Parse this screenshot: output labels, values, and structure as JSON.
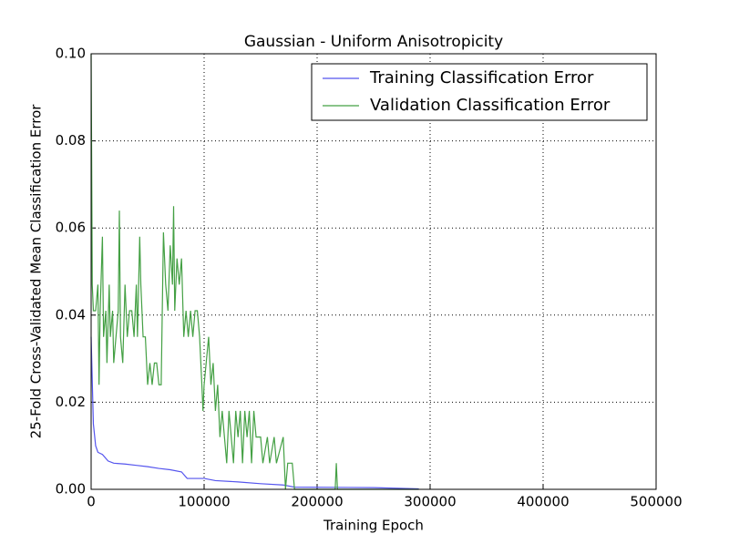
{
  "chart_data": {
    "type": "line",
    "title": "Gaussian - Uniform Anisotropicity",
    "xlabel": "Training Epoch",
    "ylabel": "25-Fold Cross-Validated Mean Classification Error",
    "xlim": [
      0,
      500000
    ],
    "ylim": [
      0,
      0.1
    ],
    "xticks": [
      0,
      100000,
      200000,
      300000,
      400000,
      500000
    ],
    "yticks": [
      {
        "value": 0,
        "label": "0.00"
      },
      {
        "value": 0.02,
        "label": "0.02"
      },
      {
        "value": 0.04,
        "label": "0.04"
      },
      {
        "value": 0.06,
        "label": "0.06"
      },
      {
        "value": 0.08,
        "label": "0.08"
      },
      {
        "value": 0.1,
        "label": "0.10"
      }
    ],
    "grid": true,
    "legend": "upper right",
    "series": [
      {
        "name": "Training Classification Error",
        "color": "#5555ee",
        "x": [
          0,
          2000,
          4000,
          6000,
          10000,
          15000,
          20000,
          30000,
          40000,
          50000,
          60000,
          70000,
          80000,
          85000,
          100000,
          110000,
          130000,
          150000,
          170000,
          180000,
          250000,
          290000
        ],
        "values": [
          0.035,
          0.015,
          0.01,
          0.0085,
          0.008,
          0.0065,
          0.006,
          0.0058,
          0.0055,
          0.0052,
          0.0048,
          0.0045,
          0.004,
          0.0025,
          0.0025,
          0.002,
          0.0017,
          0.0013,
          0.001,
          0.0005,
          0.0004,
          0.0001
        ]
      },
      {
        "name": "Validation Classification Error",
        "color": "#44a044",
        "x": [
          0,
          1000,
          2000,
          4000,
          6000,
          7000,
          8000,
          10000,
          11000,
          13000,
          14000,
          16000,
          17000,
          19000,
          20000,
          22000,
          24000,
          25000,
          26000,
          28000,
          30000,
          32000,
          34000,
          36000,
          38000,
          40000,
          41000,
          43000,
          44000,
          46000,
          48000,
          50000,
          52000,
          54000,
          56000,
          58000,
          60000,
          62000,
          64000,
          66000,
          68000,
          70000,
          72000,
          73000,
          74000,
          76000,
          78000,
          80000,
          82000,
          84000,
          86000,
          88000,
          90000,
          92000,
          94000,
          96000,
          98000,
          99000,
          100000,
          104000,
          106000,
          108000,
          110000,
          112000,
          114000,
          116000,
          118000,
          120000,
          122000,
          124000,
          126000,
          128000,
          130000,
          132000,
          134000,
          136000,
          138000,
          140000,
          142000,
          144000,
          146000,
          150000,
          152000,
          156000,
          158000,
          162000,
          164000,
          170000,
          172000,
          174000,
          178000,
          180000,
          216000,
          217000,
          218000,
          290000
        ],
        "values": [
          0.1,
          0.047,
          0.041,
          0.041,
          0.047,
          0.024,
          0.041,
          0.058,
          0.035,
          0.041,
          0.029,
          0.047,
          0.035,
          0.041,
          0.029,
          0.035,
          0.041,
          0.064,
          0.035,
          0.029,
          0.047,
          0.035,
          0.041,
          0.041,
          0.035,
          0.047,
          0.035,
          0.058,
          0.047,
          0.035,
          0.035,
          0.024,
          0.029,
          0.024,
          0.029,
          0.029,
          0.024,
          0.024,
          0.059,
          0.047,
          0.041,
          0.056,
          0.047,
          0.065,
          0.041,
          0.053,
          0.047,
          0.053,
          0.035,
          0.041,
          0.035,
          0.041,
          0.035,
          0.041,
          0.041,
          0.035,
          0.024,
          0.018,
          0.024,
          0.035,
          0.024,
          0.029,
          0.018,
          0.024,
          0.012,
          0.018,
          0.012,
          0.006,
          0.018,
          0.012,
          0.006,
          0.018,
          0.012,
          0.018,
          0.006,
          0.018,
          0.012,
          0.018,
          0.006,
          0.018,
          0.012,
          0.012,
          0.006,
          0.012,
          0.006,
          0.012,
          0.006,
          0.012,
          0,
          0.006,
          0.006,
          0,
          0,
          0.006,
          0,
          0
        ]
      }
    ]
  }
}
